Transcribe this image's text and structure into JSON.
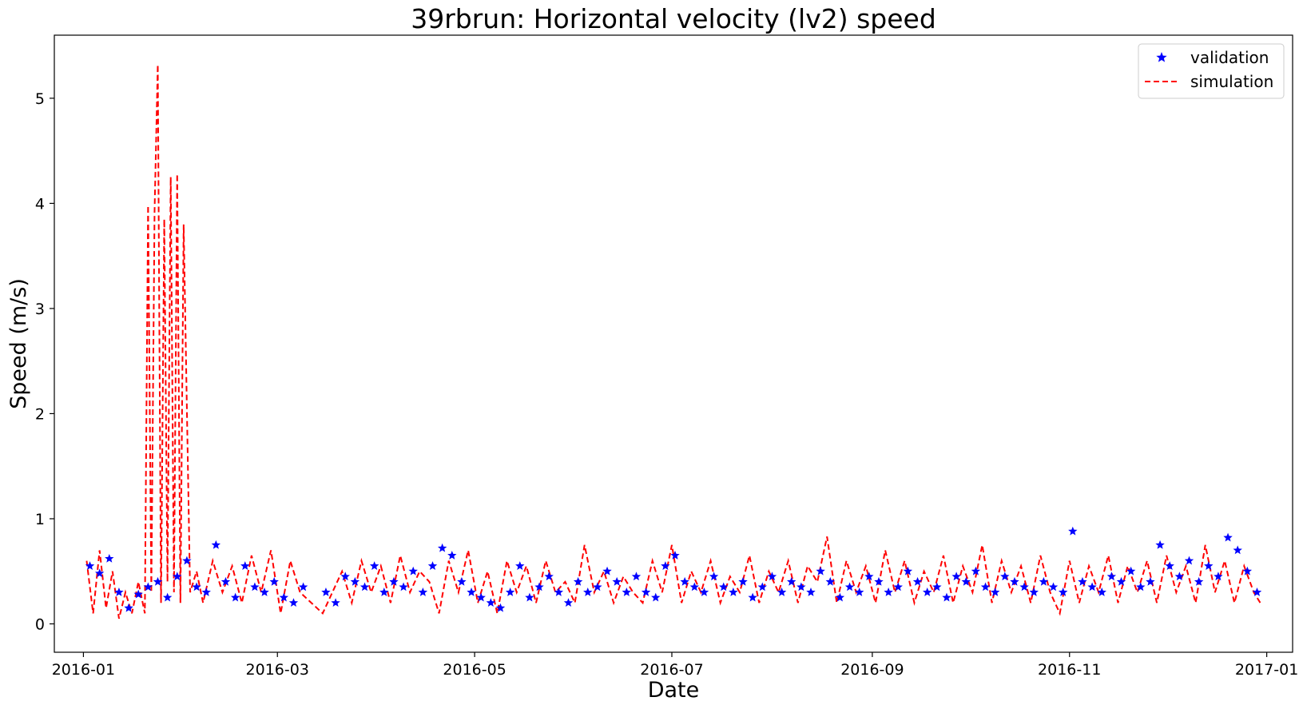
{
  "chart_data": {
    "type": "line",
    "title": "39rbrun: Horizontal velocity (lv2) speed",
    "xlabel": "Date",
    "ylabel": "Speed (m/s)",
    "x_type": "date",
    "xlim": [
      "2015-12-23",
      "2017-01-09"
    ],
    "ylim": [
      -0.27,
      5.6
    ],
    "x_ticks": [
      "2016-01-01",
      "2016-03-01",
      "2016-05-01",
      "2016-07-01",
      "2016-09-01",
      "2016-11-01",
      "2017-01-01"
    ],
    "x_tick_labels": [
      "2016-01",
      "2016-03",
      "2016-05",
      "2016-07",
      "2016-09",
      "2016-11",
      "2017-01"
    ],
    "y_ticks": [
      0,
      1,
      2,
      3,
      4,
      5
    ],
    "y_tick_labels": [
      "0",
      "1",
      "2",
      "3",
      "4",
      "5"
    ],
    "grid": false,
    "legend_position": "top-right",
    "series": [
      {
        "name": "validation",
        "style": "marker-star",
        "color": "#0000ff",
        "x": [
          "2016-01-03",
          "2016-01-06",
          "2016-01-09",
          "2016-01-12",
          "2016-01-15",
          "2016-01-18",
          "2016-01-21",
          "2016-01-24",
          "2016-01-27",
          "2016-01-30",
          "2016-02-02",
          "2016-02-05",
          "2016-02-08",
          "2016-02-11",
          "2016-02-14",
          "2016-02-17",
          "2016-02-20",
          "2016-02-23",
          "2016-02-26",
          "2016-02-29",
          "2016-03-03",
          "2016-03-06",
          "2016-03-09",
          "2016-03-16",
          "2016-03-19",
          "2016-03-22",
          "2016-03-25",
          "2016-03-28",
          "2016-03-31",
          "2016-04-03",
          "2016-04-06",
          "2016-04-09",
          "2016-04-12",
          "2016-04-15",
          "2016-04-18",
          "2016-04-21",
          "2016-04-24",
          "2016-04-27",
          "2016-04-30",
          "2016-05-03",
          "2016-05-06",
          "2016-05-09",
          "2016-05-12",
          "2016-05-15",
          "2016-05-18",
          "2016-05-21",
          "2016-05-24",
          "2016-05-27",
          "2016-05-30",
          "2016-06-02",
          "2016-06-05",
          "2016-06-08",
          "2016-06-11",
          "2016-06-14",
          "2016-06-17",
          "2016-06-20",
          "2016-06-23",
          "2016-06-26",
          "2016-06-29",
          "2016-07-02",
          "2016-07-05",
          "2016-07-08",
          "2016-07-11",
          "2016-07-14",
          "2016-07-17",
          "2016-07-20",
          "2016-07-23",
          "2016-07-26",
          "2016-07-29",
          "2016-08-01",
          "2016-08-04",
          "2016-08-07",
          "2016-08-10",
          "2016-08-13",
          "2016-08-16",
          "2016-08-19",
          "2016-08-22",
          "2016-08-25",
          "2016-08-28",
          "2016-08-31",
          "2016-09-03",
          "2016-09-06",
          "2016-09-09",
          "2016-09-12",
          "2016-09-15",
          "2016-09-18",
          "2016-09-21",
          "2016-09-24",
          "2016-09-27",
          "2016-09-30",
          "2016-10-03",
          "2016-10-06",
          "2016-10-09",
          "2016-10-12",
          "2016-10-15",
          "2016-10-18",
          "2016-10-21",
          "2016-10-24",
          "2016-10-27",
          "2016-10-30",
          "2016-11-02",
          "2016-11-05",
          "2016-11-08",
          "2016-11-11",
          "2016-11-14",
          "2016-11-17",
          "2016-11-20",
          "2016-11-23",
          "2016-11-26",
          "2016-11-29",
          "2016-12-02",
          "2016-12-05",
          "2016-12-08",
          "2016-12-11",
          "2016-12-14",
          "2016-12-17",
          "2016-12-20",
          "2016-12-23",
          "2016-12-26",
          "2016-12-29"
        ],
        "y": [
          0.55,
          0.48,
          0.62,
          0.3,
          0.15,
          0.28,
          0.35,
          0.4,
          0.25,
          0.45,
          0.6,
          0.35,
          0.3,
          0.75,
          0.4,
          0.25,
          0.55,
          0.35,
          0.3,
          0.4,
          0.25,
          0.2,
          0.35,
          0.3,
          0.2,
          0.45,
          0.4,
          0.35,
          0.55,
          0.3,
          0.4,
          0.35,
          0.5,
          0.3,
          0.55,
          0.72,
          0.65,
          0.4,
          0.3,
          0.25,
          0.2,
          0.15,
          0.3,
          0.55,
          0.25,
          0.35,
          0.45,
          0.3,
          0.2,
          0.4,
          0.3,
          0.35,
          0.5,
          0.4,
          0.3,
          0.45,
          0.3,
          0.25,
          0.55,
          0.65,
          0.4,
          0.35,
          0.3,
          0.45,
          0.35,
          0.3,
          0.4,
          0.25,
          0.35,
          0.45,
          0.3,
          0.4,
          0.35,
          0.3,
          0.5,
          0.4,
          0.25,
          0.35,
          0.3,
          0.45,
          0.4,
          0.3,
          0.35,
          0.5,
          0.4,
          0.3,
          0.35,
          0.25,
          0.45,
          0.4,
          0.5,
          0.35,
          0.3,
          0.45,
          0.4,
          0.35,
          0.3,
          0.4,
          0.35,
          0.3,
          0.88,
          0.4,
          0.35,
          0.3,
          0.45,
          0.4,
          0.5,
          0.35,
          0.4,
          0.75,
          0.55,
          0.45,
          0.6,
          0.4,
          0.55,
          0.45,
          0.82,
          0.7,
          0.5,
          0.3
        ]
      },
      {
        "name": "simulation",
        "style": "dashed-line",
        "color": "#ff0000",
        "x": [
          "2016-01-02",
          "2016-01-04",
          "2016-01-06",
          "2016-01-08",
          "2016-01-10",
          "2016-01-12",
          "2016-01-14",
          "2016-01-16",
          "2016-01-18",
          "2016-01-20",
          "2016-01-21",
          "2016-01-22",
          "2016-01-23",
          "2016-01-24",
          "2016-01-25",
          "2016-01-26",
          "2016-01-27",
          "2016-01-28",
          "2016-01-29",
          "2016-01-30",
          "2016-01-31",
          "2016-02-01",
          "2016-02-03",
          "2016-02-05",
          "2016-02-07",
          "2016-02-10",
          "2016-02-13",
          "2016-02-16",
          "2016-02-19",
          "2016-02-22",
          "2016-02-25",
          "2016-02-28",
          "2016-03-02",
          "2016-03-05",
          "2016-03-08",
          "2016-03-15",
          "2016-03-18",
          "2016-03-21",
          "2016-03-24",
          "2016-03-27",
          "2016-03-30",
          "2016-04-02",
          "2016-04-05",
          "2016-04-08",
          "2016-04-11",
          "2016-04-14",
          "2016-04-17",
          "2016-04-20",
          "2016-04-23",
          "2016-04-26",
          "2016-04-29",
          "2016-05-02",
          "2016-05-05",
          "2016-05-08",
          "2016-05-11",
          "2016-05-14",
          "2016-05-17",
          "2016-05-20",
          "2016-05-23",
          "2016-05-26",
          "2016-05-29",
          "2016-06-01",
          "2016-06-04",
          "2016-06-07",
          "2016-06-10",
          "2016-06-13",
          "2016-06-16",
          "2016-06-19",
          "2016-06-22",
          "2016-06-25",
          "2016-06-28",
          "2016-07-01",
          "2016-07-04",
          "2016-07-07",
          "2016-07-10",
          "2016-07-13",
          "2016-07-16",
          "2016-07-19",
          "2016-07-22",
          "2016-07-25",
          "2016-07-28",
          "2016-07-31",
          "2016-08-03",
          "2016-08-06",
          "2016-08-09",
          "2016-08-12",
          "2016-08-15",
          "2016-08-18",
          "2016-08-21",
          "2016-08-24",
          "2016-08-27",
          "2016-08-30",
          "2016-09-02",
          "2016-09-05",
          "2016-09-08",
          "2016-09-11",
          "2016-09-14",
          "2016-09-17",
          "2016-09-20",
          "2016-09-23",
          "2016-09-26",
          "2016-09-29",
          "2016-10-02",
          "2016-10-05",
          "2016-10-08",
          "2016-10-11",
          "2016-10-14",
          "2016-10-17",
          "2016-10-20",
          "2016-10-23",
          "2016-10-26",
          "2016-10-29",
          "2016-11-01",
          "2016-11-04",
          "2016-11-07",
          "2016-11-10",
          "2016-11-13",
          "2016-11-16",
          "2016-11-19",
          "2016-11-22",
          "2016-11-25",
          "2016-11-28",
          "2016-12-01",
          "2016-12-04",
          "2016-12-07",
          "2016-12-10",
          "2016-12-13",
          "2016-12-16",
          "2016-12-19",
          "2016-12-22",
          "2016-12-25",
          "2016-12-28",
          "2016-12-30"
        ],
        "y": [
          0.6,
          0.1,
          0.7,
          0.15,
          0.5,
          0.05,
          0.3,
          0.1,
          0.4,
          0.1,
          3.98,
          0.3,
          3.92,
          5.32,
          0.2,
          3.85,
          0.4,
          4.25,
          0.3,
          4.28,
          0.2,
          3.8,
          0.3,
          0.5,
          0.2,
          0.6,
          0.3,
          0.55,
          0.2,
          0.65,
          0.3,
          0.7,
          0.1,
          0.6,
          0.3,
          0.1,
          0.3,
          0.5,
          0.2,
          0.6,
          0.3,
          0.55,
          0.2,
          0.65,
          0.3,
          0.5,
          0.4,
          0.1,
          0.6,
          0.3,
          0.7,
          0.2,
          0.5,
          0.1,
          0.6,
          0.3,
          0.55,
          0.2,
          0.6,
          0.3,
          0.4,
          0.2,
          0.75,
          0.3,
          0.5,
          0.2,
          0.45,
          0.3,
          0.2,
          0.6,
          0.3,
          0.75,
          0.2,
          0.5,
          0.3,
          0.6,
          0.2,
          0.45,
          0.3,
          0.65,
          0.2,
          0.5,
          0.3,
          0.6,
          0.2,
          0.55,
          0.4,
          0.83,
          0.2,
          0.6,
          0.3,
          0.55,
          0.2,
          0.7,
          0.3,
          0.6,
          0.2,
          0.5,
          0.3,
          0.65,
          0.2,
          0.55,
          0.3,
          0.75,
          0.2,
          0.6,
          0.3,
          0.55,
          0.2,
          0.65,
          0.3,
          0.1,
          0.6,
          0.2,
          0.55,
          0.3,
          0.65,
          0.2,
          0.55,
          0.3,
          0.6,
          0.2,
          0.65,
          0.3,
          0.55,
          0.2,
          0.75,
          0.3,
          0.6,
          0.2,
          0.55,
          0.3,
          0.2
        ]
      }
    ]
  }
}
